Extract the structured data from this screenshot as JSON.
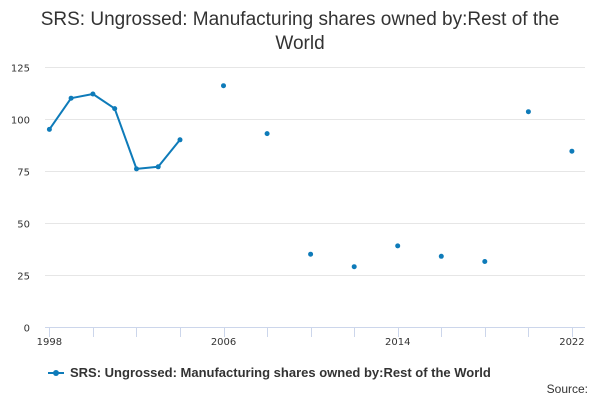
{
  "colors": {
    "series": "#0e7bb9",
    "grid": "#e6e6e6",
    "axis": "#ccd6eb"
  },
  "chart_data": {
    "type": "line",
    "title": "SRS: Ungrossed: Manufacturing shares owned by:Rest of the World",
    "xlabel": "",
    "ylabel": "",
    "xlim": [
      1997.8,
      2022.6
    ],
    "ylim": [
      0,
      125
    ],
    "xticks": [
      "1998",
      "2006",
      "2014",
      "2022"
    ],
    "yticks": [
      "0",
      "25",
      "50",
      "75",
      "100",
      "125"
    ],
    "grid": true,
    "legend_position": "bottom-left",
    "series": [
      {
        "name": "SRS: Ungrossed: Manufacturing shares owned by:Rest of the World",
        "points": [
          {
            "x": 1998,
            "y": 95
          },
          {
            "x": 1999,
            "y": 110
          },
          {
            "x": 2000,
            "y": 112
          },
          {
            "x": 2001,
            "y": 105
          },
          {
            "x": 2002,
            "y": 76
          },
          {
            "x": 2003,
            "y": 77
          },
          {
            "x": 2004,
            "y": 90
          },
          {
            "x": 2005,
            "y": null
          },
          {
            "x": 2006,
            "y": 116
          },
          {
            "x": 2007,
            "y": null
          },
          {
            "x": 2008,
            "y": 93
          },
          {
            "x": 2009,
            "y": null
          },
          {
            "x": 2010,
            "y": 35
          },
          {
            "x": 2011,
            "y": null
          },
          {
            "x": 2012,
            "y": 29
          },
          {
            "x": 2013,
            "y": null
          },
          {
            "x": 2014,
            "y": 39
          },
          {
            "x": 2015,
            "y": null
          },
          {
            "x": 2016,
            "y": 34
          },
          {
            "x": 2017,
            "y": null
          },
          {
            "x": 2018,
            "y": 31.5
          },
          {
            "x": 2019,
            "y": null
          },
          {
            "x": 2020,
            "y": 103.5
          },
          {
            "x": 2021,
            "y": null
          },
          {
            "x": 2022,
            "y": 84.5
          }
        ]
      }
    ]
  },
  "legend": {
    "label": "SRS: Ungrossed: Manufacturing shares owned by:Rest of the World"
  },
  "footer": {
    "source_label": "Source:"
  }
}
